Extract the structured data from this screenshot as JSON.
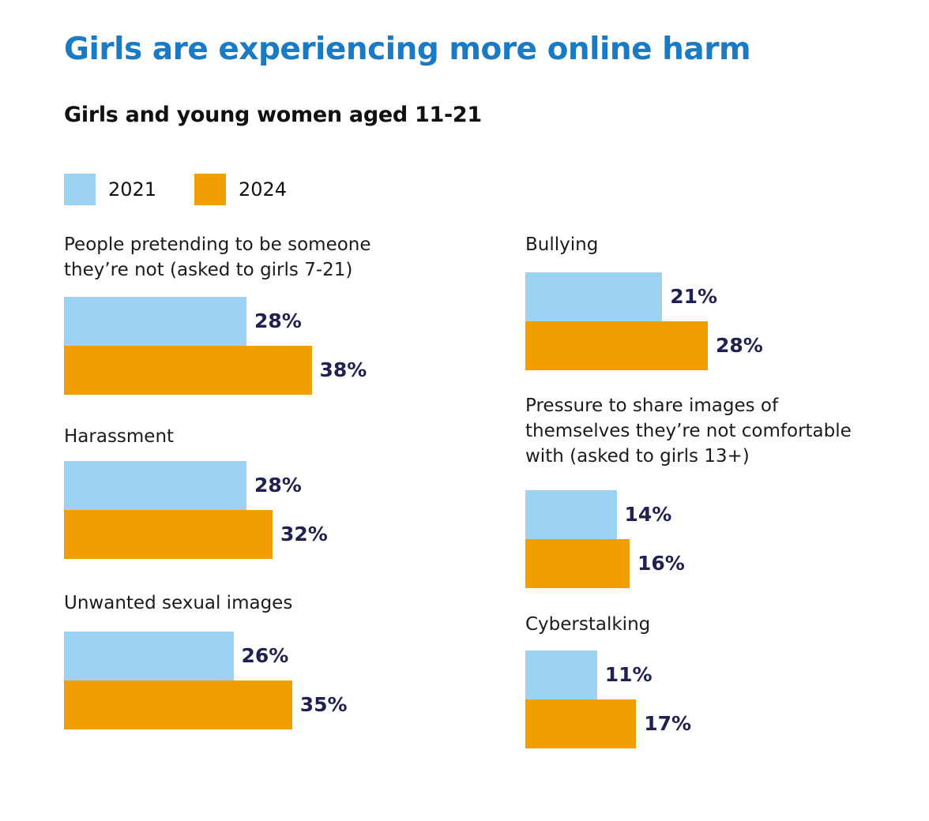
{
  "title": "Girls are experiencing more online harm",
  "subtitle": "Girls and young women aged 11-21",
  "colors": {
    "title": "#1a7ac4",
    "series_2021": "#9dd3f2",
    "series_2024": "#f29e00",
    "value_label": "#1e2152"
  },
  "chart_data": {
    "type": "bar",
    "orientation": "horizontal",
    "title": "Girls are experiencing more online harm",
    "subtitle": "Girls and young women aged 11-21",
    "legend": [
      "2021",
      "2024"
    ],
    "legend_position": "top-left",
    "unit": "%",
    "xlim": [
      0,
      40
    ],
    "categories": [
      "People pretending to be someone they’re not (asked to girls 7-21)",
      "Harassment",
      "Unwanted sexual images",
      "Bullying",
      "Pressure to share images of themselves they’re not comfortable with (asked to girls 13+)",
      "Cyberstalking"
    ],
    "series": [
      {
        "name": "2021",
        "values": [
          28,
          28,
          26,
          21,
          14,
          11
        ],
        "labels": [
          "28%",
          "28%",
          "26%",
          "21%",
          "14%",
          "11%"
        ]
      },
      {
        "name": "2024",
        "values": [
          38,
          32,
          35,
          28,
          16,
          17
        ],
        "labels": [
          "38%",
          "32%",
          "35%",
          "28%",
          "16%",
          "17%"
        ]
      }
    ],
    "groups": [
      {
        "label_lines": [
          "People pretending to be someone",
          "they’re not (asked to girls 7-21)"
        ]
      },
      {
        "label_lines": [
          "Harassment"
        ]
      },
      {
        "label_lines": [
          "Unwanted sexual images"
        ]
      },
      {
        "label_lines": [
          "Bullying"
        ]
      },
      {
        "label_lines": [
          "Pressure to share images of",
          "themselves they’re not comfortable",
          "with (asked to girls 13+)"
        ]
      },
      {
        "label_lines": [
          "Cyberstalking"
        ]
      }
    ]
  }
}
